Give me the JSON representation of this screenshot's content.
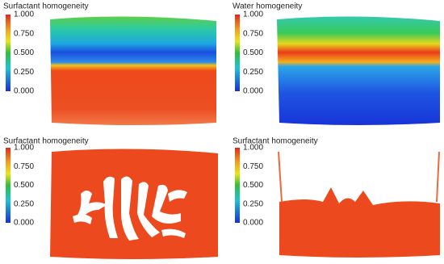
{
  "panels": [
    {
      "title": "Surfactant homogeneity",
      "ticks": [
        "1.000",
        "0.750",
        "0.500",
        "0.250",
        "0.000"
      ]
    },
    {
      "title": "Water homogeneity",
      "ticks": [
        "1.000",
        "0.750",
        "0.500",
        "0.250",
        "0.000"
      ]
    },
    {
      "title": "Surfactant homogeneity",
      "ticks": [
        "1.000",
        "0.750",
        "0.500",
        "0.250",
        "0.000"
      ]
    },
    {
      "title": "Surfactant homogeneity",
      "ticks": [
        "1.000",
        "0.750",
        "0.500",
        "0.250",
        "0.000"
      ]
    }
  ]
}
